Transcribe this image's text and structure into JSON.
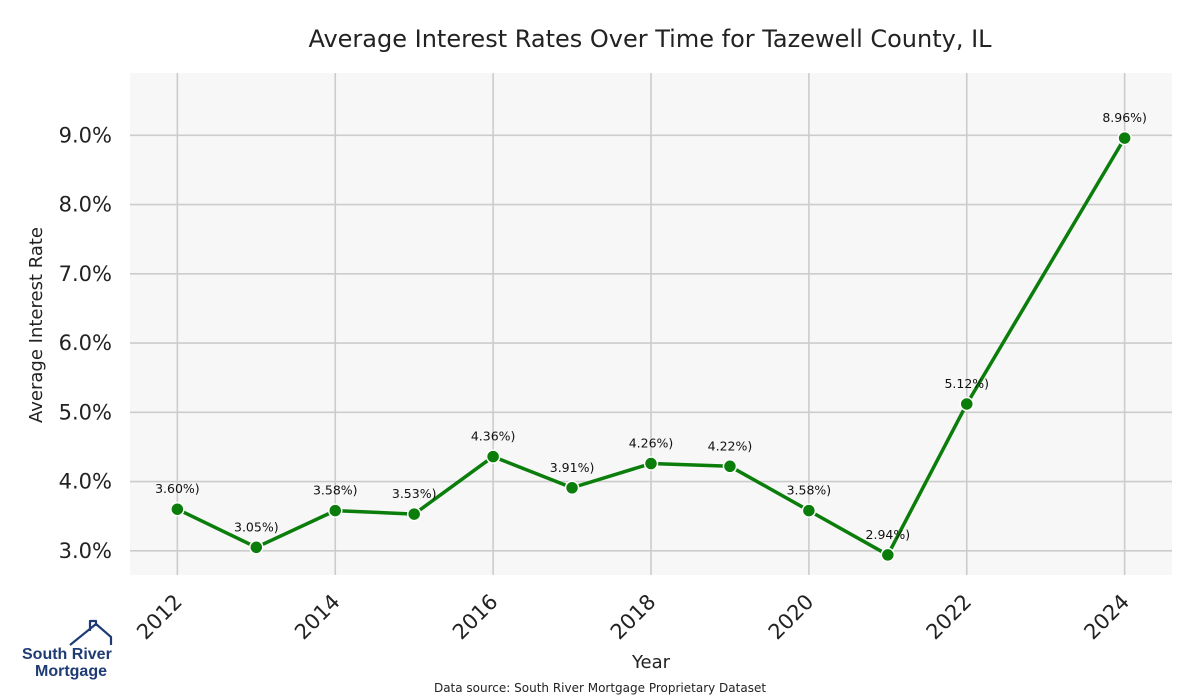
{
  "chart_data": {
    "type": "line",
    "title": "Average Interest Rates Over Time for Tazewell County, IL",
    "xlabel": "Year",
    "ylabel": "Average Interest Rate",
    "x": [
      2012,
      2013,
      2014,
      2015,
      2016,
      2017,
      2018,
      2019,
      2020,
      2021,
      2022,
      2024
    ],
    "values": [
      3.6,
      3.05,
      3.58,
      3.53,
      4.36,
      3.91,
      4.26,
      4.22,
      3.58,
      2.94,
      5.12,
      8.96
    ],
    "point_labels": [
      "3.60%)",
      "3.05%)",
      "3.58%)",
      "3.53%)",
      "4.36%)",
      "3.91%)",
      "4.26%)",
      "4.22%)",
      "3.58%)",
      "2.94%)",
      "5.12%)",
      "8.96%)"
    ],
    "x_ticks": [
      "2012",
      "2014",
      "2016",
      "2018",
      "2020",
      "2022",
      "2024"
    ],
    "y_ticks": [
      "3.0%",
      "4.0%",
      "5.0%",
      "6.0%",
      "7.0%",
      "8.0%",
      "9.0%"
    ],
    "y_tick_values": [
      3,
      4,
      5,
      6,
      7,
      8,
      9
    ],
    "xlim": [
      2011.4,
      2024.6
    ],
    "ylim": [
      2.65,
      9.9
    ],
    "grid": true,
    "line_color": "#0a7d0a",
    "plot_bg": "#f7f7f7",
    "grid_color": "#cccccc"
  },
  "footer": {
    "source": "Data source: South River Mortgage Proprietary Dataset"
  },
  "logo": {
    "line1": "South River",
    "line2": "Mortgage"
  }
}
